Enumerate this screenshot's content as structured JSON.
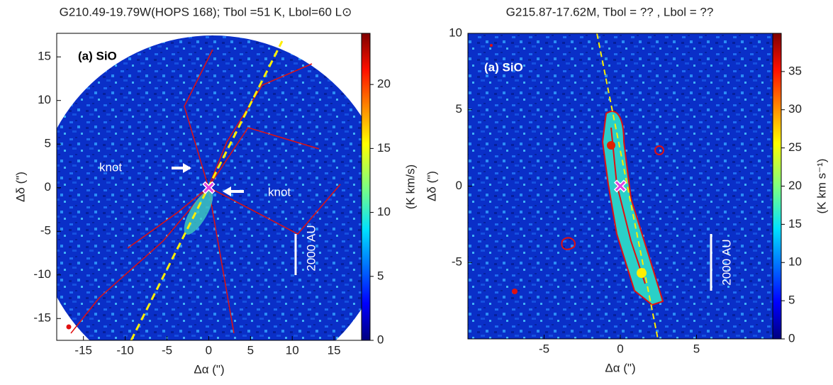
{
  "chart_data": [
    {
      "type": "image",
      "title": "G210.49-19.79W(HOPS 168); Tbol =51 K, Lbol=60 L⊙",
      "xlabel": "Δα (\")",
      "ylabel": "Δδ (\")",
      "xlim": [
        -18.2,
        18.3
      ],
      "ylim": [
        -17.5,
        17.7
      ],
      "xticks": [
        -15,
        -10,
        -5,
        0,
        5,
        10,
        15
      ],
      "yticks": [
        -15,
        -10,
        -5,
        0,
        5,
        10,
        15
      ],
      "colorbar_label": "(K km/s)",
      "colorbar_lim": [
        0,
        24
      ],
      "colorbar_ticks": [
        0,
        5,
        10,
        15,
        20
      ],
      "annotations": [
        "(a) SiO",
        "knot",
        "knot",
        "2000 AU"
      ]
    },
    {
      "type": "image",
      "title": "G215.87-17.62M,  Tbol = ??  , Lbol = ??",
      "xlabel": "Δα (\")",
      "ylabel": "Δδ (\")",
      "xlim": [
        -10,
        10
      ],
      "ylim": [
        -10,
        10
      ],
      "xticks": [
        -5,
        0,
        5
      ],
      "yticks": [
        -5,
        0,
        5,
        10
      ],
      "colorbar_label": "(K km s⁻¹)",
      "colorbar_lim": [
        0,
        40
      ],
      "colorbar_ticks": [
        0,
        5,
        10,
        15,
        20,
        25,
        30,
        35
      ],
      "annotations": [
        "(a) SiO",
        "2000 AU"
      ]
    }
  ]
}
